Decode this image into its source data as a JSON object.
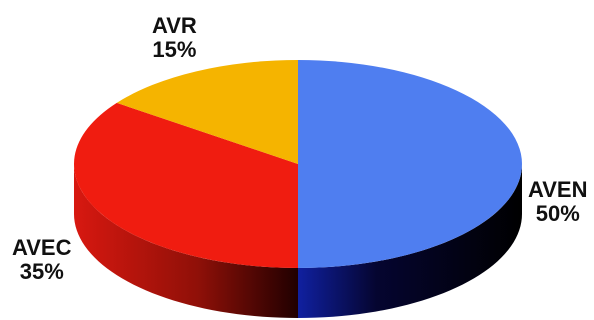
{
  "chart_data": {
    "type": "pie",
    "title": "",
    "style": "3d",
    "slices": [
      {
        "label": "AVEN",
        "value": 50,
        "value_label": "50%",
        "color": "#4f7ef0"
      },
      {
        "label": "AVEC",
        "value": 35,
        "value_label": "35%",
        "color": "#f01c10"
      },
      {
        "label": "AVR",
        "value": 15,
        "value_label": "15%",
        "color": "#f5b400"
      }
    ]
  }
}
